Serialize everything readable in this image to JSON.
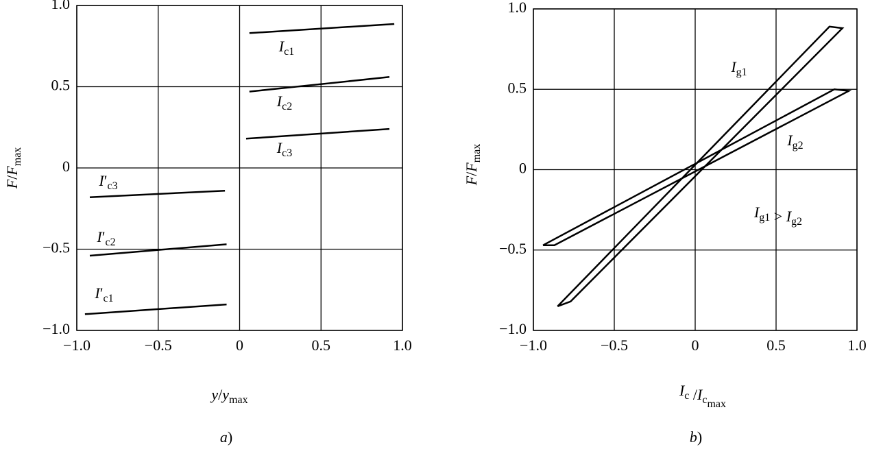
{
  "chart_data": [
    {
      "type": "line",
      "title": "a)",
      "xlabel": "y/ymax",
      "ylabel": "F/Fmax",
      "xlim": [
        -1,
        1
      ],
      "ylim": [
        -1,
        1
      ],
      "grid": true,
      "xticks": [
        {
          "value": -1,
          "label": "−1.0"
        },
        {
          "value": -0.5,
          "label": "−0.5"
        },
        0,
        0.5,
        {
          "value": 1,
          "label": "1.0"
        }
      ],
      "yticks": [
        {
          "value": -1,
          "label": "−1.0"
        },
        {
          "value": -0.5,
          "label": "−0.5"
        },
        0,
        0.5,
        {
          "value": 1,
          "label": "1.0"
        }
      ],
      "series": [
        {
          "name": "Ic1",
          "color": "#000000",
          "x": [
            0.06,
            0.95
          ],
          "values": [
            0.83,
            0.886
          ]
        },
        {
          "name": "Ic2",
          "color": "#000000",
          "x": [
            0.06,
            0.92
          ],
          "values": [
            0.47,
            0.56
          ]
        },
        {
          "name": "Ic3",
          "color": "#000000",
          "x": [
            0.04,
            0.92
          ],
          "values": [
            0.18,
            0.24
          ]
        },
        {
          "name": "I′c3",
          "color": "#000000",
          "x": [
            -0.92,
            -0.09
          ],
          "values": [
            -0.18,
            -0.14
          ]
        },
        {
          "name": "I′c2",
          "color": "#000000",
          "x": [
            -0.92,
            -0.08
          ],
          "values": [
            -0.54,
            -0.47
          ]
        },
        {
          "name": "I′c1",
          "color": "#000000",
          "x": [
            -0.95,
            -0.08
          ],
          "values": [
            -0.9,
            -0.84
          ]
        }
      ]
    },
    {
      "type": "loop",
      "title": "b)",
      "xlabel": "Ic /Icmax",
      "ylabel": "F/Fmax",
      "xlim": [
        -1,
        1
      ],
      "ylim": [
        -1,
        1
      ],
      "grid": true,
      "xticks": [
        {
          "value": -1,
          "label": "−1.0"
        },
        {
          "value": -0.5,
          "label": "−0.5"
        },
        0,
        0.5,
        {
          "value": 1,
          "label": "1.0"
        }
      ],
      "yticks": [
        {
          "value": -1,
          "label": "−1.0"
        },
        {
          "value": -0.5,
          "label": "−0.5"
        },
        0,
        0.5,
        {
          "value": 1,
          "label": "1.0"
        }
      ],
      "series": [
        {
          "name": "Ig1",
          "color": "#000000",
          "x": [
            -0.85,
            0.83,
            0.91,
            -0.77
          ],
          "values": [
            -0.85,
            0.89,
            0.88,
            -0.82
          ]
        },
        {
          "name": "Ig2",
          "color": "#000000",
          "x": [
            -0.94,
            0.86,
            0.95,
            -0.87
          ],
          "values": [
            -0.47,
            0.5,
            0.49,
            -0.47
          ]
        }
      ],
      "annotations": [
        "Ig1 > Ig2"
      ]
    }
  ]
}
